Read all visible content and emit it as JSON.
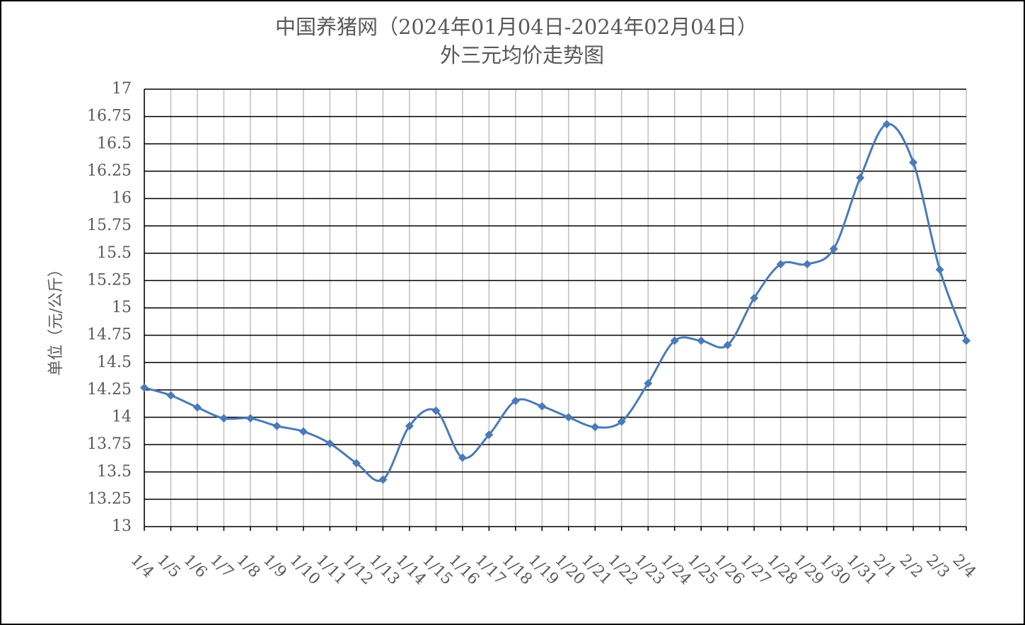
{
  "chart_data": {
    "type": "line",
    "title": "中国养猪网（2024年01月04日-2024年02月04日）",
    "subtitle": "外三元均价走势图",
    "y_label": "单位（元/公斤）",
    "categories": [
      "1/4",
      "1/5",
      "1/6",
      "1/7",
      "1/8",
      "1/9",
      "1/10",
      "1/11",
      "1/12",
      "1/13",
      "1/14",
      "1/15",
      "1/16",
      "1/17",
      "1/18",
      "1/19",
      "1/20",
      "1/21",
      "1/22",
      "1/23",
      "1/24",
      "1/25",
      "1/26",
      "1/27",
      "1/28",
      "1/29",
      "1/30",
      "1/31",
      "2/1",
      "2/2",
      "2/3",
      "2/4"
    ],
    "series": [
      {
        "name": "外三元均价",
        "color": "#4a7ab8",
        "values": [
          14.27,
          14.2,
          14.09,
          13.99,
          13.99,
          13.92,
          13.87,
          13.76,
          13.58,
          13.43,
          13.92,
          14.06,
          13.63,
          13.84,
          14.15,
          14.1,
          14.0,
          13.91,
          13.96,
          14.31,
          14.7,
          14.7,
          14.66,
          15.09,
          15.4,
          15.4,
          15.54,
          16.19,
          16.68,
          16.33,
          15.35,
          14.7
        ]
      }
    ],
    "ylim": [
      13,
      17
    ],
    "yticks": [
      13,
      13.25,
      13.5,
      13.75,
      14,
      14.25,
      14.5,
      14.75,
      15,
      15.25,
      15.5,
      15.75,
      16,
      16.25,
      16.5,
      16.75,
      17
    ],
    "grid": true,
    "smooth": true,
    "marker": "diamond"
  }
}
